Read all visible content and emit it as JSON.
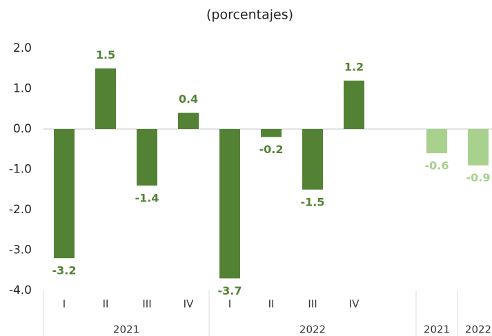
{
  "chart_data": {
    "type": "bar",
    "subtitle": "(porcentajes)",
    "categories": [
      "I",
      "II",
      "III",
      "IV",
      "I",
      "II",
      "III",
      "IV",
      null,
      "2021",
      "2022"
    ],
    "values": [
      -3.2,
      1.5,
      -1.4,
      0.4,
      -3.7,
      -0.2,
      -1.5,
      1.2,
      null,
      -0.6,
      -0.9
    ],
    "colors": [
      "#548235",
      "#548235",
      "#548235",
      "#548235",
      "#548235",
      "#548235",
      "#548235",
      "#548235",
      null,
      "#a9d18e",
      "#a9d18e"
    ],
    "groups": [
      {
        "label": "2021",
        "count": 4
      },
      {
        "label": "2022",
        "count": 5
      }
    ],
    "ylim": [
      -4,
      2
    ],
    "yticks": [
      {
        "value": 2,
        "label": "2.0"
      },
      {
        "value": 1,
        "label": "1.0"
      },
      {
        "value": 0,
        "label": "0.0"
      },
      {
        "value": -1,
        "label": "-1.0"
      },
      {
        "value": -2,
        "label": "-2.0"
      },
      {
        "value": -3,
        "label": "-3.0"
      },
      {
        "value": -4,
        "label": "-4.0"
      }
    ],
    "grid": false
  }
}
